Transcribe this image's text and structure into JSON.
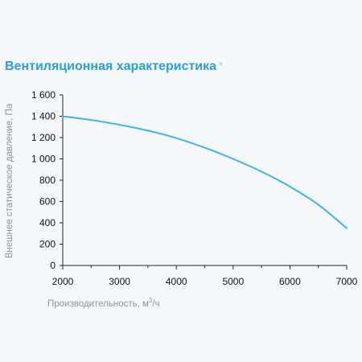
{
  "chart_data": {
    "type": "line",
    "title": "Вентиляционная характеристика",
    "title_marker": "*",
    "xlabel": "Производительность, м",
    "xlabel_sup": "3",
    "xlabel_suffix": "/ч",
    "ylabel": "Внешнее статическое давление, Па",
    "xlim": [
      2000,
      7000
    ],
    "ylim": [
      0,
      1600
    ],
    "x_ticks": [
      2000,
      3000,
      4000,
      5000,
      6000,
      7000
    ],
    "x_tick_labels": [
      "2000",
      "3000",
      "4000",
      "5000",
      "6000",
      "7000"
    ],
    "y_ticks": [
      0,
      200,
      400,
      600,
      800,
      1000,
      1200,
      1400,
      1600
    ],
    "y_tick_labels": [
      "0",
      "200",
      "400",
      "600",
      "800",
      "1 000",
      "1 200",
      "1 400",
      "1 600"
    ],
    "grid": false,
    "series": [
      {
        "color": "#3ab5e6",
        "x": [
          2000,
          2500,
          3000,
          3500,
          4000,
          4500,
          5000,
          5500,
          6000,
          6500,
          7000
        ],
        "y": [
          1400,
          1365,
          1320,
          1265,
          1195,
          1105,
          1000,
          880,
          740,
          570,
          350
        ]
      }
    ]
  }
}
